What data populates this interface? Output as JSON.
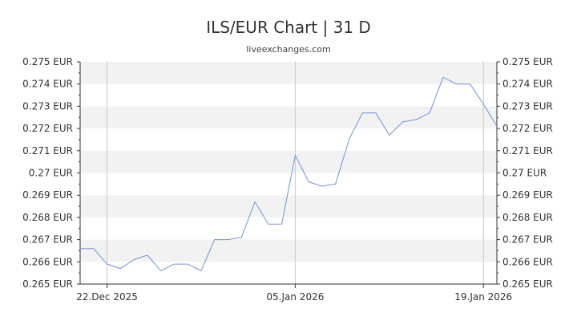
{
  "header": {
    "title": "ILS/EUR Chart | 31 D",
    "subtitle": "liveexchanges.com"
  },
  "colors": {
    "line": "#6f94d8",
    "band": "#f2f2f2",
    "gridline": "#c8c8c8",
    "axis": "#333333"
  },
  "chart_data": {
    "type": "line",
    "title": "ILS/EUR Chart | 31 D",
    "subtitle": "liveexchanges.com",
    "xlabel": "",
    "ylabel": "",
    "grid": true,
    "ylim": [
      0.265,
      0.275
    ],
    "y_ticks": [
      0.265,
      0.266,
      0.267,
      0.268,
      0.269,
      0.27,
      0.271,
      0.272,
      0.273,
      0.274,
      0.275
    ],
    "y_tick_labels": [
      "0.265 EUR",
      "0.266 EUR",
      "0.267 EUR",
      "0.268 EUR",
      "0.269 EUR",
      "0.27 EUR",
      "0.271 EUR",
      "0.272 EUR",
      "0.273 EUR",
      "0.274 EUR",
      "0.275 EUR"
    ],
    "x_range": [
      "2025-12-20",
      "2026-01-20"
    ],
    "x_ticks": [
      {
        "date": "2025-12-22",
        "label": "22.Dec 2025"
      },
      {
        "date": "2026-01-05",
        "label": "05.Jan 2026"
      },
      {
        "date": "2026-01-19",
        "label": "19.Jan 2026"
      }
    ],
    "series": [
      {
        "points": [
          {
            "x": "2025-12-20",
            "y": 0.2666
          },
          {
            "x": "2025-12-21",
            "y": 0.2666
          },
          {
            "x": "2025-12-22",
            "y": 0.2659
          },
          {
            "x": "2025-12-23",
            "y": 0.2657
          },
          {
            "x": "2025-12-24",
            "y": 0.2661
          },
          {
            "x": "2025-12-25",
            "y": 0.2663
          },
          {
            "x": "2025-12-26",
            "y": 0.2656
          },
          {
            "x": "2025-12-27",
            "y": 0.2659
          },
          {
            "x": "2025-12-28",
            "y": 0.2659
          },
          {
            "x": "2025-12-29",
            "y": 0.2656
          },
          {
            "x": "2025-12-30",
            "y": 0.267
          },
          {
            "x": "2025-12-31",
            "y": 0.267
          },
          {
            "x": "2026-01-01",
            "y": 0.2671
          },
          {
            "x": "2026-01-02",
            "y": 0.2687
          },
          {
            "x": "2026-01-03",
            "y": 0.2677
          },
          {
            "x": "2026-01-04",
            "y": 0.2677
          },
          {
            "x": "2026-01-05",
            "y": 0.2708
          },
          {
            "x": "2026-01-06",
            "y": 0.2696
          },
          {
            "x": "2026-01-07",
            "y": 0.2694
          },
          {
            "x": "2026-01-08",
            "y": 0.2695
          },
          {
            "x": "2026-01-09",
            "y": 0.2715
          },
          {
            "x": "2026-01-10",
            "y": 0.2727
          },
          {
            "x": "2026-01-11",
            "y": 0.2727
          },
          {
            "x": "2026-01-12",
            "y": 0.2717
          },
          {
            "x": "2026-01-13",
            "y": 0.2723
          },
          {
            "x": "2026-01-14",
            "y": 0.2724
          },
          {
            "x": "2026-01-15",
            "y": 0.2727
          },
          {
            "x": "2026-01-16",
            "y": 0.2743
          },
          {
            "x": "2026-01-17",
            "y": 0.274
          },
          {
            "x": "2026-01-18",
            "y": 0.274
          },
          {
            "x": "2026-01-19",
            "y": 0.2731
          },
          {
            "x": "2026-01-20",
            "y": 0.2721
          }
        ]
      }
    ]
  }
}
